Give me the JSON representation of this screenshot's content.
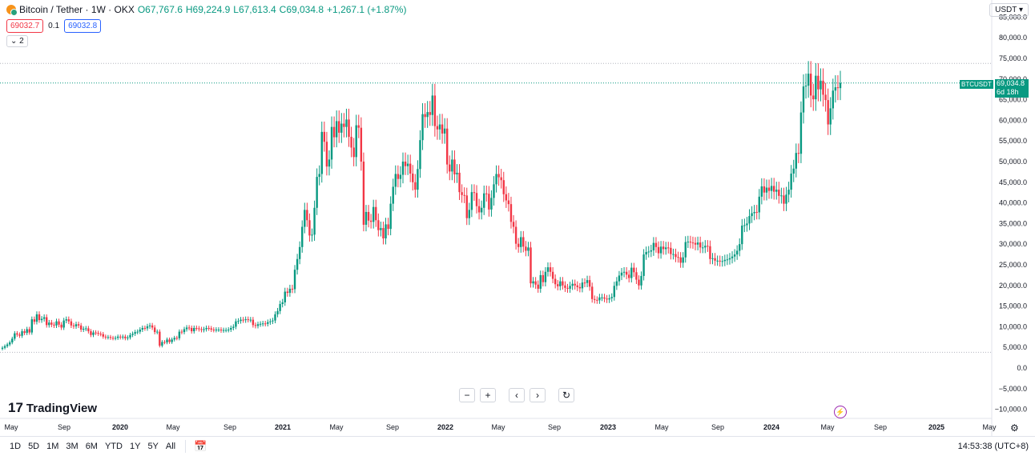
{
  "legend": {
    "title": "Bitcoin / Tether · 1W · OKX",
    "open": "O67,767.6",
    "high": "H69,224.9",
    "low": "L67,613.4",
    "close": "C69,034.8",
    "change": "+1,267.1 (+1.87%)"
  },
  "bidask": {
    "bid": "69032.7",
    "spread": "0.1",
    "ask": "69032.8"
  },
  "collapse_label": "2",
  "currency": "USDT",
  "logo": "TradingView",
  "price_tag": {
    "symbol": "BTCUSDT",
    "price": "69,034.8",
    "countdown": "6d 18h"
  },
  "nav_buttons": [
    "−",
    "+",
    "‹",
    "›",
    "↻"
  ],
  "ranges": [
    "1D",
    "5D",
    "1M",
    "3M",
    "6M",
    "YTD",
    "1Y",
    "5Y",
    "All"
  ],
  "clock": "14:53:38 (UTC+8)",
  "colors": {
    "up": "#089981",
    "down": "#f23645",
    "accent": "#2962ff"
  },
  "chart_data": {
    "type": "candlestick",
    "interval": "1W",
    "yaxis_ticks": [
      "85,000.0",
      "80,000.0",
      "75,000.0",
      "70,000.0",
      "65,000.0",
      "60,000.0",
      "55,000.0",
      "50,000.0",
      "45,000.0",
      "40,000.0",
      "35,000.0",
      "30,000.0",
      "25,000.0",
      "20,000.0",
      "15,000.0",
      "10,000.0",
      "5,000.0",
      "0.0",
      "−5,000.0",
      "−10,000.0"
    ],
    "ylim": [
      -10000,
      85000
    ],
    "xaxis_ticks": [
      "May",
      "Sep",
      "2020",
      "May",
      "Sep",
      "2021",
      "May",
      "Sep",
      "2022",
      "May",
      "Sep",
      "2023",
      "May",
      "Sep",
      "2024",
      "May",
      "Sep",
      "2025",
      "May"
    ],
    "hlines": [
      73800,
      69034.8,
      3800
    ],
    "closes": [
      4900,
      5300,
      5700,
      6200,
      7100,
      8400,
      8100,
      7800,
      8900,
      8500,
      9400,
      8600,
      11800,
      11200,
      13000,
      11600,
      11900,
      12300,
      10400,
      11000,
      10500,
      10300,
      11300,
      10500,
      9800,
      11500,
      11800,
      11300,
      10300,
      10100,
      10600,
      10300,
      9300,
      9500,
      9600,
      8900,
      8000,
      8600,
      8500,
      8300,
      8200,
      7600,
      7400,
      7500,
      7300,
      7200,
      7300,
      7600,
      7400,
      7600,
      7200,
      7400,
      8000,
      8300,
      8700,
      8800,
      9300,
      9700,
      9600,
      10100,
      10300,
      9800,
      8700,
      8800,
      5400,
      6300,
      6200,
      6900,
      6300,
      6900,
      7300,
      7200,
      8800,
      8700,
      9400,
      9800,
      9700,
      8900,
      9700,
      9600,
      9400,
      9200,
      9400,
      9700,
      9600,
      9300,
      9200,
      9300,
      9300,
      9100,
      9200,
      9200,
      9300,
      9700,
      10000,
      11300,
      11400,
      11700,
      11600,
      11800,
      11700,
      11700,
      10400,
      10200,
      10600,
      10700,
      10800,
      10700,
      11100,
      11300,
      11500,
      13000,
      13800,
      15500,
      15900,
      18500,
      18200,
      19200,
      19100,
      23800,
      26400,
      29300,
      34200,
      38300,
      35800,
      32100,
      32300,
      38800,
      46300,
      47000,
      57200,
      54800,
      48800,
      50500,
      58400,
      55900,
      59800,
      57000,
      59200,
      58400,
      60200,
      56000,
      53400,
      51100,
      58800,
      58200,
      50000,
      34700,
      37800,
      35700,
      35400,
      39000,
      35800,
      33400,
      33900,
      31400,
      34800,
      33700,
      39800,
      43900,
      47000,
      45800,
      46800,
      50000,
      48900,
      49500,
      47100,
      45000,
      43200,
      48200,
      55200,
      61500,
      60800,
      62000,
      61300,
      66000,
      58600,
      57800,
      59000,
      56800,
      58000,
      49300,
      47600,
      50500,
      46900,
      47300,
      42600,
      41900,
      41800,
      36300,
      38300,
      42600,
      42400,
      39200,
      37700,
      38800,
      42300,
      42200,
      38400,
      41200,
      44500,
      47000,
      46200,
      45500,
      42100,
      40600,
      39700,
      35400,
      34200,
      30100,
      29300,
      31700,
      29400,
      28400,
      29200,
      20500,
      21000,
      20200,
      19200,
      22500,
      20800,
      23300,
      24400,
      23300,
      21600,
      20300,
      19800,
      21000,
      20000,
      19400,
      19200,
      19900,
      20400,
      20000,
      19600,
      19300,
      20700,
      20600,
      21300,
      19700,
      16700,
      16500,
      16400,
      17100,
      17100,
      16800,
      16600,
      16900,
      17200,
      19900,
      21000,
      22400,
      23100,
      23300,
      22600,
      21800,
      24300,
      23200,
      21400,
      20000,
      22300,
      27500,
      28100,
      28200,
      28500,
      30300,
      29300,
      27800,
      29400,
      28800,
      29200,
      29100,
      27600,
      27600,
      26900,
      26800,
      25500,
      26800,
      30500,
      30600,
      30400,
      30300,
      29900,
      30400,
      29200,
      29200,
      29600,
      29500,
      26400,
      26600,
      26000,
      26000,
      25800,
      25900,
      26200,
      26300,
      26600,
      27000,
      27500,
      28400,
      30000,
      34500,
      34600,
      35000,
      36800,
      37500,
      37800,
      37700,
      41500,
      44000,
      42500,
      43700,
      42900,
      44100,
      42700,
      43200,
      41700,
      41800,
      39800,
      42000,
      43200,
      47100,
      48300,
      52100,
      51900,
      61900,
      68200,
      68400,
      71300,
      66000,
      65100,
      70800,
      67500,
      69600,
      66200,
      64900,
      59000,
      62900,
      67200,
      68000,
      67800,
      69034.8
    ],
    "current_price": 69034.8
  }
}
